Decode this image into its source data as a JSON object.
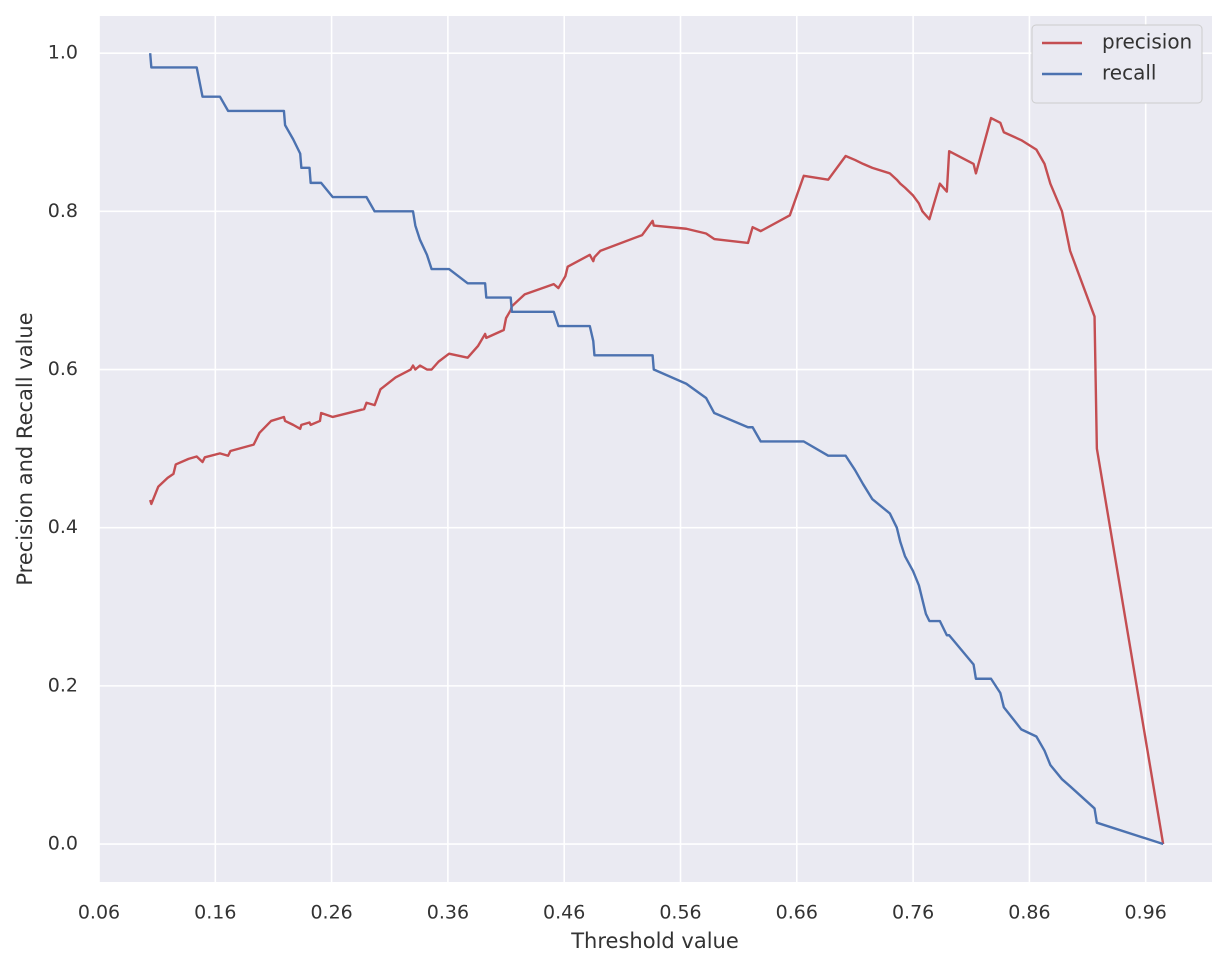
{
  "chart_data": {
    "type": "line",
    "x_label": "Threshold value",
    "y_label": "Precision and Recall value",
    "xlim": [
      0.06,
      1.017
    ],
    "ylim": [
      -0.048,
      1.047
    ],
    "xticks": [
      0.06,
      0.16,
      0.26,
      0.36,
      0.46,
      0.56,
      0.66,
      0.76,
      0.86,
      0.96
    ],
    "yticks": [
      {
        "value": 0,
        "label": "0.0"
      },
      0.2,
      0.4,
      0.6,
      0.8,
      {
        "value": 1,
        "label": "1.0"
      }
    ],
    "grid": true,
    "legend_position": "upper-right",
    "x": [
      0.104,
      0.105,
      0.111,
      0.119,
      0.124,
      0.126,
      0.137,
      0.144,
      0.149,
      0.151,
      0.164,
      0.171,
      0.173,
      0.193,
      0.198,
      0.208,
      0.219,
      0.22,
      0.227,
      0.233,
      0.234,
      0.241,
      0.242,
      0.25,
      0.251,
      0.261,
      0.288,
      0.29,
      0.297,
      0.302,
      0.315,
      0.328,
      0.33,
      0.332,
      0.336,
      0.342,
      0.346,
      0.352,
      0.361,
      0.377,
      0.386,
      0.392,
      0.393,
      0.408,
      0.41,
      0.414,
      0.415,
      0.426,
      0.451,
      0.455,
      0.461,
      0.463,
      0.482,
      0.485,
      0.486,
      0.491,
      0.527,
      0.536,
      0.537,
      0.565,
      0.582,
      0.589,
      0.618,
      0.622,
      0.629,
      0.654,
      0.66,
      0.666,
      0.687,
      0.702,
      0.71,
      0.717,
      0.725,
      0.74,
      0.746,
      0.749,
      0.753,
      0.76,
      0.765,
      0.768,
      0.771,
      0.774,
      0.783,
      0.789,
      0.791,
      0.812,
      0.814,
      0.827,
      0.835,
      0.838,
      0.853,
      0.866,
      0.873,
      0.878,
      0.888,
      0.895,
      0.916,
      0.918,
      0.975
    ],
    "series": [
      {
        "name": "precision",
        "color": "#c44e52",
        "values": [
          0.435,
          0.43,
          0.452,
          0.463,
          0.468,
          0.48,
          0.487,
          0.49,
          0.483,
          0.489,
          0.494,
          0.491,
          0.497,
          0.505,
          0.52,
          0.535,
          0.54,
          0.535,
          0.53,
          0.525,
          0.53,
          0.533,
          0.53,
          0.535,
          0.545,
          0.54,
          0.55,
          0.558,
          0.555,
          0.575,
          0.59,
          0.6,
          0.605,
          0.6,
          0.605,
          0.6,
          0.6,
          0.61,
          0.62,
          0.615,
          0.63,
          0.645,
          0.64,
          0.65,
          0.665,
          0.675,
          0.68,
          0.695,
          0.708,
          0.703,
          0.718,
          0.73,
          0.745,
          0.737,
          0.742,
          0.75,
          0.77,
          0.788,
          0.782,
          0.778,
          0.772,
          0.765,
          0.76,
          0.78,
          0.775,
          0.795,
          0.82,
          0.845,
          0.84,
          0.87,
          0.865,
          0.86,
          0.855,
          0.848,
          0.84,
          0.835,
          0.83,
          0.82,
          0.81,
          0.8,
          0.795,
          0.79,
          0.835,
          0.825,
          0.876,
          0.86,
          0.848,
          0.918,
          0.912,
          0.9,
          0.89,
          0.878,
          0.86,
          0.835,
          0.8,
          0.75,
          0.667,
          0.5,
          0.0
        ]
      },
      {
        "name": "recall",
        "color": "#4c72b0",
        "values": [
          1.0,
          0.982,
          0.982,
          0.982,
          0.982,
          0.982,
          0.982,
          0.982,
          0.945,
          0.945,
          0.945,
          0.927,
          0.927,
          0.927,
          0.927,
          0.927,
          0.927,
          0.909,
          0.891,
          0.873,
          0.855,
          0.855,
          0.836,
          0.836,
          0.836,
          0.818,
          0.818,
          0.818,
          0.8,
          0.8,
          0.8,
          0.8,
          0.8,
          0.782,
          0.764,
          0.745,
          0.727,
          0.727,
          0.727,
          0.709,
          0.709,
          0.709,
          0.691,
          0.691,
          0.691,
          0.691,
          0.673,
          0.673,
          0.673,
          0.655,
          0.655,
          0.655,
          0.655,
          0.636,
          0.618,
          0.618,
          0.618,
          0.618,
          0.6,
          0.582,
          0.564,
          0.545,
          0.527,
          0.527,
          0.509,
          0.509,
          0.509,
          0.509,
          0.491,
          0.491,
          0.473,
          0.455,
          0.436,
          0.418,
          0.4,
          0.382,
          0.364,
          0.345,
          0.327,
          0.309,
          0.291,
          0.282,
          0.282,
          0.264,
          0.264,
          0.227,
          0.209,
          0.209,
          0.191,
          0.173,
          0.145,
          0.136,
          0.118,
          0.1,
          0.082,
          0.073,
          0.045,
          0.027,
          0.0
        ]
      }
    ]
  }
}
